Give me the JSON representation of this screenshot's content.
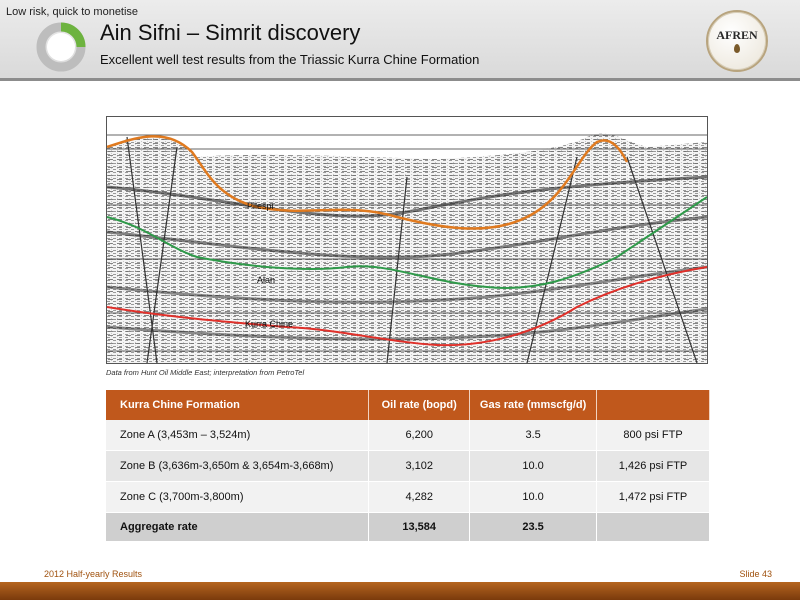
{
  "header": {
    "tagline": "Low risk, quick to monetise",
    "title": "Ain Sifni – Simrit discovery",
    "subtitle": "Excellent well test results from the Triassic Kurra Chine Formation",
    "logo_text": "AFREN"
  },
  "seismic": {
    "horizon_labels": [
      "Pilespi",
      "Alan",
      "Kurra Chine"
    ],
    "caption": "Data from Hunt Oil Middle East; interpretation from PetroTel"
  },
  "table": {
    "headers": [
      "Kurra Chine Formation",
      "Oil rate (bopd)",
      "Gas rate (mmscfg/d)",
      ""
    ],
    "rows": [
      {
        "zone": "Zone A (3,453m – 3,524m)",
        "oil": "6,200",
        "gas": "3.5",
        "ftp": "800 psi FTP"
      },
      {
        "zone": "Zone B (3,636m-3,650m & 3,654m-3,668m)",
        "oil": "3,102",
        "gas": "10.0",
        "ftp": "1,426 psi FTP"
      },
      {
        "zone": "Zone C  (3,700m-3,800m)",
        "oil": "4,282",
        "gas": "10.0",
        "ftp": "1,472 psi FTP"
      }
    ],
    "aggregate": {
      "label": "Aggregate rate",
      "oil": "13,584",
      "gas": "23.5",
      "ftp": ""
    }
  },
  "footer": {
    "left": "2012 Half-yearly Results",
    "right": "Slide 43"
  },
  "colors": {
    "accent_orange": "#c0581c",
    "logo_green": "#6db33f",
    "horizon_orange": "#e07a1f",
    "horizon_green": "#2f9a4a",
    "horizon_red": "#e0302a"
  }
}
